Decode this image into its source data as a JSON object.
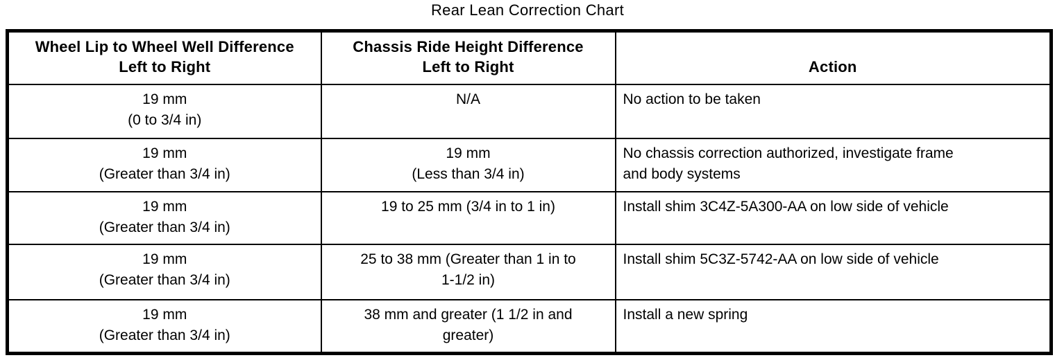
{
  "title": "Rear Lean Correction Chart",
  "table": {
    "headers": [
      "Wheel Lip to Wheel Well Difference\nLeft to Right",
      "Chassis Ride Height Difference\nLeft to Right",
      "Action"
    ],
    "rows": [
      {
        "wheel": "19 mm\n(0 to 3/4 in)",
        "chassis": "N/A",
        "action": "No action to be taken"
      },
      {
        "wheel": "19 mm\n(Greater than 3/4 in)",
        "chassis": "19 mm\n(Less than 3/4 in)",
        "action": "No chassis correction authorized, investigate frame\nand body systems"
      },
      {
        "wheel": "19 mm\n(Greater than 3/4 in)",
        "chassis": "19 to 25 mm (3/4 in to 1 in)",
        "action": "Install shim 3C4Z-5A300-AA on low side of vehicle"
      },
      {
        "wheel": "19 mm\n(Greater than 3/4 in)",
        "chassis": "25 to 38 mm (Greater than 1 in to\n1-1/2 in)",
        "action": "Install shim 5C3Z-5742-AA on low side of vehicle"
      },
      {
        "wheel": "19 mm\n(Greater than 3/4 in)",
        "chassis": "38 mm and greater (1 1/2 in and\ngreater)",
        "action": "Install a new spring"
      }
    ]
  },
  "colors": {
    "text": "#000000",
    "background": "#ffffff",
    "border": "#000000"
  }
}
